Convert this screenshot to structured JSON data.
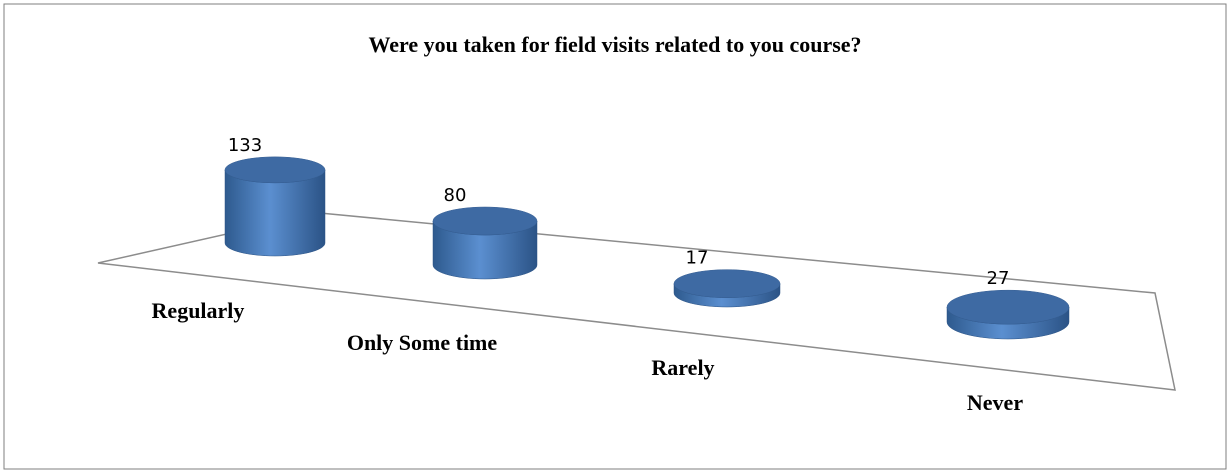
{
  "chart_data": {
    "type": "cylinder-bar",
    "title": "Were you taken for field visits related to you course?",
    "categories": [
      "Regularly",
      "Only Some time",
      "Rarely",
      "Never"
    ],
    "values": [
      133,
      80,
      17,
      27
    ],
    "color": "#4f81bd"
  }
}
